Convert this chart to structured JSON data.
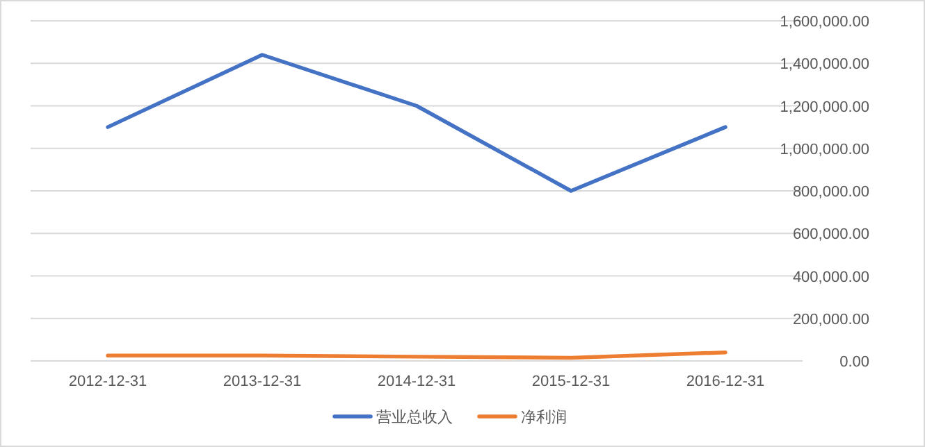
{
  "chart_data": {
    "type": "line",
    "categories": [
      "2012-12-31",
      "2013-12-31",
      "2014-12-31",
      "2015-12-31",
      "2016-12-31"
    ],
    "series": [
      {
        "name": "营业总收入",
        "color": "#4472c4",
        "values": [
          1100000,
          1440000,
          1200000,
          800000,
          1100000
        ]
      },
      {
        "name": "净利润",
        "color": "#ed7d31",
        "values": [
          25000,
          25000,
          20000,
          15000,
          40000
        ]
      }
    ],
    "ylim": [
      0,
      1600000
    ],
    "yticks": [
      {
        "value": 0,
        "label": "0.00"
      },
      {
        "value": 200000,
        "label": "200,000.00"
      },
      {
        "value": 400000,
        "label": "400,000.00"
      },
      {
        "value": 600000,
        "label": "600,000.00"
      },
      {
        "value": 800000,
        "label": "800,000.00"
      },
      {
        "value": 1000000,
        "label": "1,000,000.00"
      },
      {
        "value": 1200000,
        "label": "1,200,000.00"
      },
      {
        "value": 1400000,
        "label": "1,400,000.00"
      },
      {
        "value": 1600000,
        "label": "1,600,000.00"
      }
    ],
    "grid": "y",
    "legend": "bottom",
    "marker": "none",
    "line_style": "solid"
  }
}
